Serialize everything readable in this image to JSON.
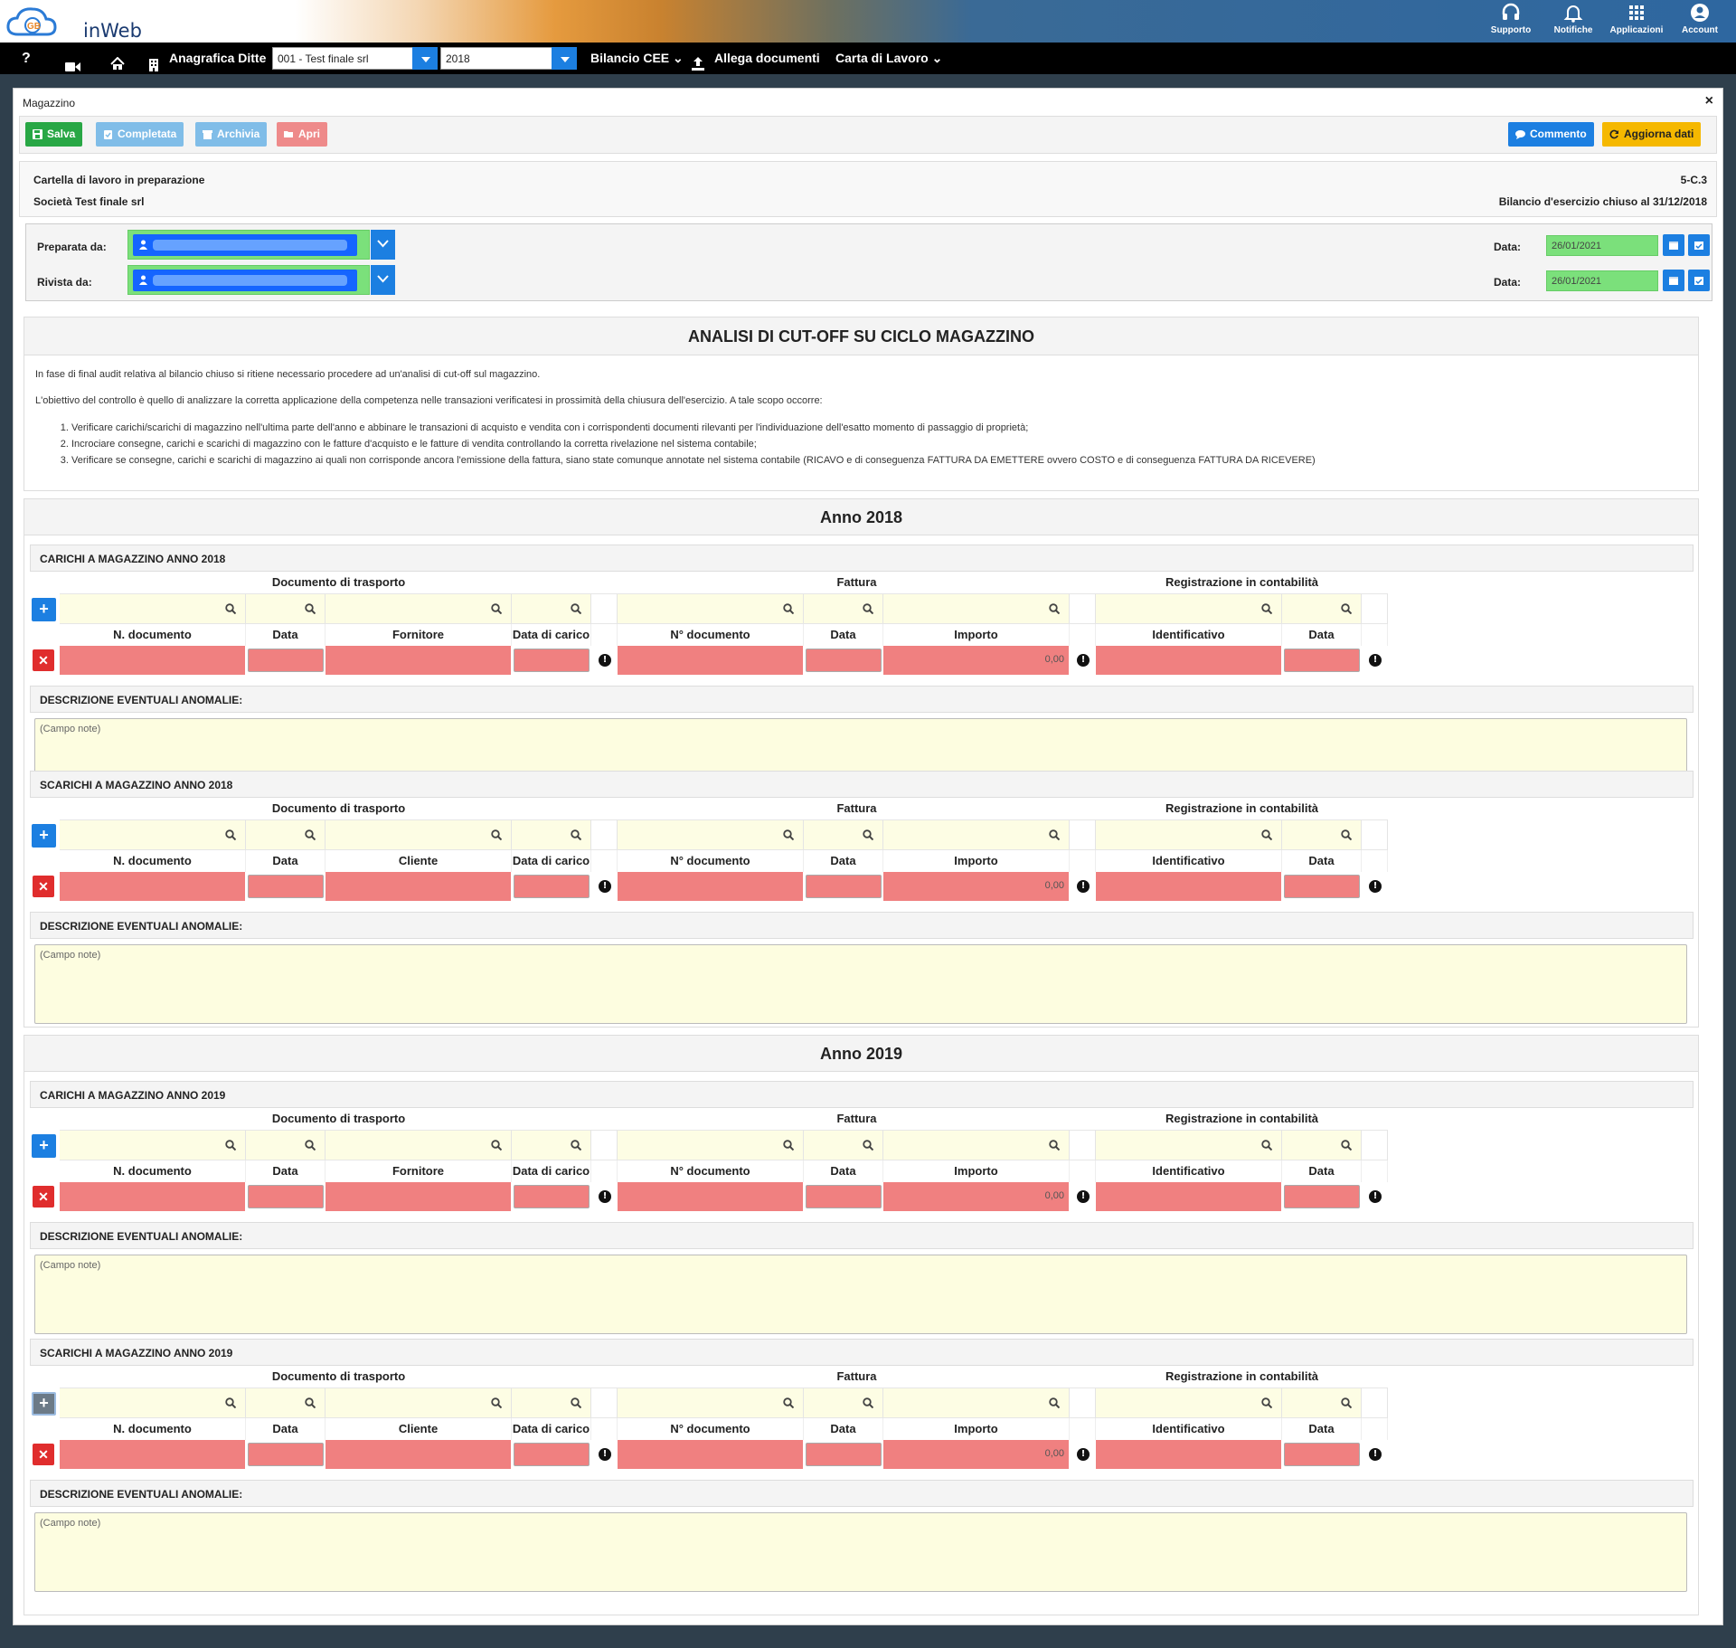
{
  "app": {
    "name": "inWeb"
  },
  "topnav": [
    {
      "label": "Supporto",
      "icon": "headset-icon"
    },
    {
      "label": "Notifiche",
      "icon": "bell-icon"
    },
    {
      "label": "Applicazioni",
      "icon": "grid-icon"
    },
    {
      "label": "Account",
      "icon": "user-icon"
    }
  ],
  "navbar": {
    "help": "?",
    "company_label": "Anagrafica Ditte",
    "company_value": "001 - Test finale srl",
    "year_value": "2018",
    "bilancio": "Bilancio CEE",
    "allega": "Allega documenti",
    "carta": "Carta di Lavoro"
  },
  "panel": {
    "title": "Magazzino",
    "close": "×"
  },
  "toolbar": {
    "salva": "Salva",
    "completata": "Completata",
    "archivia": "Archivia",
    "apri": "Apri",
    "commento": "Commento",
    "aggiorna": "Aggiorna dati"
  },
  "info": {
    "status": "Cartella di lavoro in preparazione",
    "company": "Società Test finale srl",
    "code": "5-C.3",
    "bilancio": "Bilancio d'esercizio chiuso al 31/12/2018"
  },
  "prep": {
    "preparata_label": "Preparata da:",
    "rivista_label": "Rivista da:",
    "data_label": "Data:",
    "preparata_date": "26/01/2021",
    "rivista_date": "26/01/2021"
  },
  "analysis": {
    "title": "ANALISI DI CUT-OFF SU CICLO MAGAZZINO",
    "p1": "In fase di final audit relativa al bilancio chiuso si ritiene necessario procedere ad un'analisi di cut-off sul magazzino.",
    "p2": "L'obiettivo del controllo è quello di analizzare la corretta applicazione della competenza nelle transazioni verificatesi in prossimità della chiusura dell'esercizio. A tale scopo occorre:",
    "items": [
      "Verificare carichi/scarichi di magazzino nell'ultima parte dell'anno e abbinare le transazioni di acquisto e vendita con i corrispondenti documenti rilevanti per l'individuazione dell'esatto momento di passaggio di proprietà;",
      "Incrociare consegne, carichi e scarichi di magazzino con le fatture d'acquisto e le fatture di vendita controllando la corretta rivelazione nel sistema contabile;",
      "Verificare se consegne, carichi e scarichi di magazzino ai quali non corrisponde ancora l'emissione della fattura, siano state comunque annotate nel sistema contabile (RICAVO e di conseguenza FATTURA DA EMETTERE ovvero COSTO e di conseguenza FATTURA DA RICEVERE)"
    ]
  },
  "groups": {
    "doc": "Documento di trasporto",
    "fattura": "Fattura",
    "reg": "Registrazione in contabilità"
  },
  "cols": {
    "ndoc": "N. documento",
    "data": "Data",
    "fornitore": "Fornitore",
    "cliente": "Cliente",
    "data_carico": "Data di carico",
    "n_documento": "N° documento",
    "importo": "Importo",
    "identificativo": "Identificativo"
  },
  "anomalie_label": "DESCRIZIONE EVENTUALI ANOMALIE:",
  "notes_placeholder": "(Campo note)",
  "importo_value": "0,00",
  "year_cards": [
    {
      "title": "Anno 2018",
      "sections": [
        {
          "title": "CARICHI A MAGAZZINO ANNO 2018"
        },
        {
          "title": "SCARICHI A MAGAZZINO ANNO 2018"
        }
      ]
    },
    {
      "title": "Anno 2019",
      "sections": [
        {
          "title": "CARICHI A MAGAZZINO ANNO 2019"
        },
        {
          "title": "SCARICHI A MAGAZZINO ANNO 2019"
        }
      ]
    }
  ]
}
